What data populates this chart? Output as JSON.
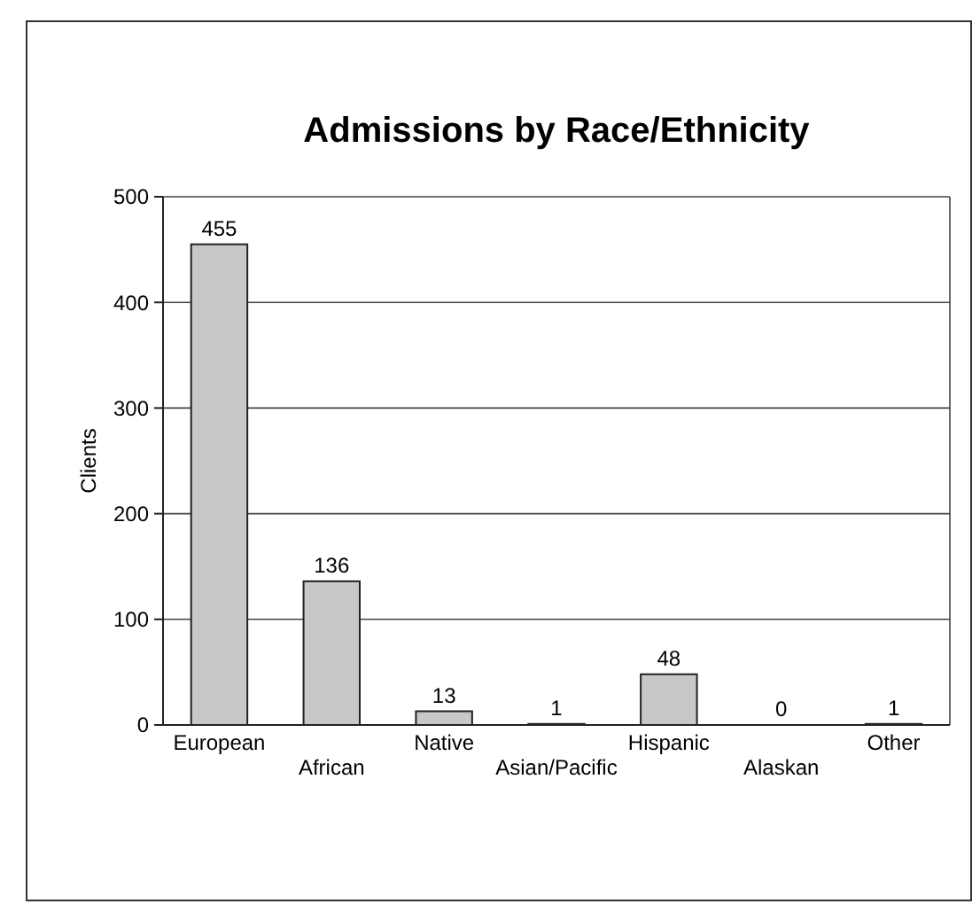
{
  "chart_data": {
    "type": "bar",
    "title": "Admissions by Race/Ethnicity",
    "ylabel": "Clients",
    "categories": [
      "European",
      "African",
      "Native",
      "Asian/Pacific",
      "Hispanic",
      "Alaskan",
      "Other"
    ],
    "values": [
      455,
      136,
      13,
      1,
      48,
      0,
      1
    ],
    "color": "#c8c8c8",
    "ylim": [
      0,
      500
    ],
    "yticks": [
      0,
      100,
      200,
      300,
      400,
      500
    ],
    "grid": "y",
    "data_labels": true
  }
}
